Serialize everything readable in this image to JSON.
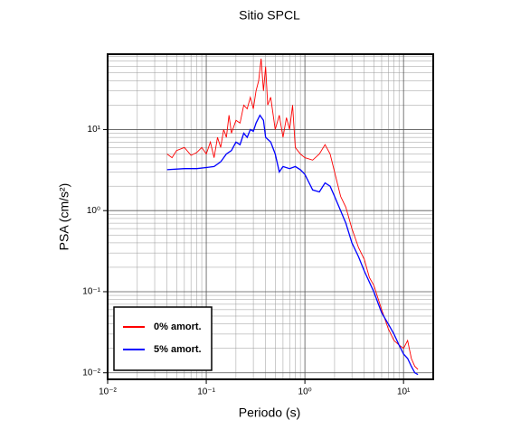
{
  "chart_data": {
    "type": "line",
    "title": "Sitio SPCL",
    "x_label": "Periodo (s)",
    "y_label": "PSA (cm/s²)",
    "log_x": true,
    "log_y": true,
    "grid": true,
    "legend": "lower left",
    "xlim": [
      0.01,
      20
    ],
    "ylim": [
      0.0083,
      85
    ],
    "xticks": [
      {
        "value": 0.01,
        "label": "10⁻²"
      },
      {
        "value": 0.1,
        "label": "10⁻¹"
      },
      {
        "value": 1,
        "label": "10⁰"
      },
      {
        "value": 10,
        "label": "10¹"
      }
    ],
    "yticks": [
      {
        "value": 0.01,
        "label": "10⁻²"
      },
      {
        "value": 0.1,
        "label": "10⁻¹"
      },
      {
        "value": 1,
        "label": "10⁰"
      },
      {
        "value": 10,
        "label": "10¹"
      }
    ],
    "xminorticks": [
      0.02,
      0.03,
      0.04,
      0.05,
      0.06,
      0.07,
      0.08,
      0.09,
      0.2,
      0.3,
      0.4,
      0.5,
      0.6,
      0.7,
      0.8,
      0.9,
      2,
      3,
      4,
      5,
      6,
      7,
      8,
      9
    ],
    "yminorticks": [
      0.02,
      0.03,
      0.04,
      0.05,
      0.06,
      0.07,
      0.08,
      0.09,
      0.2,
      0.3,
      0.4,
      0.5,
      0.6,
      0.7,
      0.8,
      0.9,
      2,
      3,
      4,
      5,
      6,
      7,
      8,
      9,
      20,
      30,
      40,
      50,
      60,
      70,
      80
    ],
    "series": [
      {
        "name": "0% amort.",
        "color": "#ff0000",
        "x": [
          0.04,
          0.045,
          0.05,
          0.06,
          0.07,
          0.08,
          0.09,
          0.1,
          0.11,
          0.12,
          0.13,
          0.14,
          0.15,
          0.16,
          0.17,
          0.18,
          0.2,
          0.22,
          0.24,
          0.26,
          0.28,
          0.3,
          0.32,
          0.34,
          0.36,
          0.38,
          0.4,
          0.42,
          0.45,
          0.5,
          0.55,
          0.6,
          0.65,
          0.7,
          0.75,
          0.8,
          0.9,
          1.0,
          1.2,
          1.4,
          1.6,
          1.8,
          2.0,
          2.3,
          2.6,
          3.0,
          3.5,
          4,
          4.5,
          5,
          6,
          7,
          8,
          9,
          10,
          11,
          12,
          13,
          14
        ],
        "values": [
          5,
          4.5,
          5.5,
          6,
          4.8,
          5.2,
          6,
          5,
          7,
          4.5,
          8,
          6,
          10,
          8,
          15,
          9,
          13,
          12,
          20,
          18,
          25,
          18,
          30,
          40,
          75,
          30,
          60,
          20,
          25,
          10,
          15,
          8,
          14,
          10,
          20,
          6,
          5,
          4.5,
          4.2,
          5,
          6.5,
          5,
          3,
          1.5,
          1.1,
          0.6,
          0.35,
          0.25,
          0.15,
          0.12,
          0.06,
          0.035,
          0.025,
          0.022,
          0.02,
          0.025,
          0.015,
          0.012,
          0.011
        ]
      },
      {
        "name": "5% amort.",
        "color": "#0000ff",
        "x": [
          0.04,
          0.06,
          0.08,
          0.1,
          0.12,
          0.14,
          0.16,
          0.18,
          0.2,
          0.22,
          0.24,
          0.26,
          0.28,
          0.3,
          0.32,
          0.35,
          0.38,
          0.4,
          0.45,
          0.5,
          0.55,
          0.6,
          0.7,
          0.8,
          0.9,
          1.0,
          1.2,
          1.4,
          1.6,
          1.8,
          2.0,
          2.3,
          2.6,
          3.0,
          3.5,
          4,
          5,
          6,
          7,
          8,
          9,
          10,
          11,
          12,
          13,
          14
        ],
        "values": [
          3.2,
          3.3,
          3.3,
          3.4,
          3.5,
          4,
          5,
          5.5,
          7,
          6.5,
          9,
          8,
          10,
          9.5,
          12,
          15,
          13,
          8,
          7,
          5,
          3,
          3.5,
          3.3,
          3.5,
          3.2,
          2.8,
          1.8,
          1.7,
          2.2,
          2,
          1.5,
          1,
          0.7,
          0.4,
          0.27,
          0.18,
          0.1,
          0.055,
          0.04,
          0.03,
          0.022,
          0.017,
          0.015,
          0.012,
          0.01,
          0.0095
        ]
      }
    ]
  }
}
